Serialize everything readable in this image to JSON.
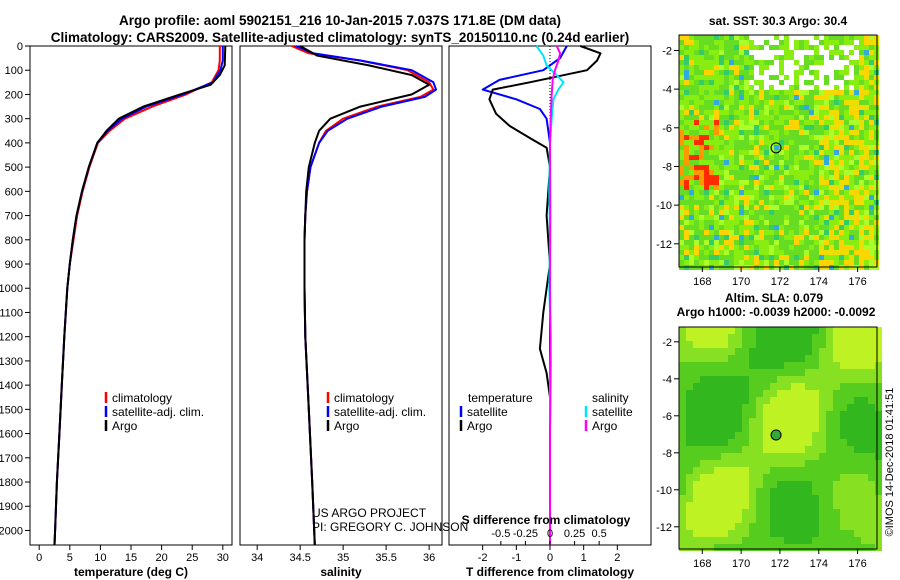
{
  "header": {
    "line1": "Argo profile: aoml 5902151_216 10-Jan-2015 7.037S 171.8E (DM data)",
    "line2": "Climatology: CARS2009. Satellite-adjusted climatology: synTS_20150110.nc (0.24d earlier)"
  },
  "colors": {
    "climatology": "#ff0000",
    "satellite": "#0000ff",
    "argo": "#000000",
    "satellite_salinity": "#00e5ff",
    "argo_salinity": "#ff00ff"
  },
  "credit": {
    "line1": "US ARGO PROJECT",
    "line2": "PI: GREGORY C. JOHNSON"
  },
  "stamp": "©IMOS 14-Dec-2018 01:41:51",
  "chart_data": [
    {
      "id": "temperature",
      "type": "line",
      "xlabel": "temperature (deg C)",
      "xlim": [
        -1.5,
        31.5
      ],
      "xticks": [
        0,
        5,
        10,
        15,
        20,
        25,
        30
      ],
      "ylim": [
        2060,
        0
      ],
      "yticks": [
        0,
        100,
        200,
        300,
        400,
        500,
        600,
        700,
        800,
        900,
        1000,
        1100,
        1200,
        1300,
        1400,
        1500,
        1600,
        1700,
        1800,
        1900,
        2000
      ],
      "legend": [
        {
          "label": "climatology",
          "color": "#ff0000"
        },
        {
          "label": "satellite-adj. clim.",
          "color": "#0000ff"
        },
        {
          "label": "Argo",
          "color": "#000000"
        }
      ],
      "series": [
        {
          "name": "climatology",
          "color": "#ff0000",
          "points": [
            [
              0,
              29.5
            ],
            [
              60,
              29.5
            ],
            [
              100,
              29.3
            ],
            [
              150,
              28.2
            ],
            [
              200,
              24
            ],
            [
              250,
              18.5
            ],
            [
              300,
              14
            ],
            [
              350,
              11.5
            ],
            [
              400,
              9.6
            ],
            [
              500,
              8.2
            ],
            [
              600,
              7.1
            ],
            [
              700,
              6.2
            ],
            [
              800,
              5.6
            ],
            [
              900,
              5
            ],
            [
              1000,
              4.6
            ],
            [
              1200,
              4.1
            ],
            [
              1400,
              3.7
            ],
            [
              1600,
              3.3
            ],
            [
              1800,
              2.9
            ],
            [
              2000,
              2.6
            ],
            [
              2060,
              2.5
            ]
          ]
        },
        {
          "name": "satellite-adj. clim.",
          "color": "#0000ff",
          "points": [
            [
              0,
              30
            ],
            [
              60,
              30
            ],
            [
              100,
              29.6
            ],
            [
              150,
              28.4
            ],
            [
              200,
              23.5
            ],
            [
              250,
              17.5
            ],
            [
              300,
              13.5
            ],
            [
              350,
              11.2
            ],
            [
              400,
              9.5
            ],
            [
              500,
              8.1
            ],
            [
              600,
              7
            ],
            [
              700,
              6.1
            ],
            [
              800,
              5.5
            ],
            [
              900,
              5
            ],
            [
              1000,
              4.6
            ],
            [
              1200,
              4.1
            ],
            [
              1400,
              3.7
            ],
            [
              1600,
              3.3
            ],
            [
              1800,
              2.9
            ],
            [
              2000,
              2.6
            ],
            [
              2060,
              2.5
            ]
          ]
        },
        {
          "name": "Argo",
          "color": "#000000",
          "points": [
            [
              0,
              30.4
            ],
            [
              80,
              30.3
            ],
            [
              120,
              29.5
            ],
            [
              160,
              28
            ],
            [
              200,
              23
            ],
            [
              250,
              17
            ],
            [
              300,
              13
            ],
            [
              350,
              11
            ],
            [
              400,
              9.5
            ],
            [
              500,
              8.1
            ],
            [
              600,
              7
            ],
            [
              700,
              6.1
            ],
            [
              800,
              5.5
            ],
            [
              900,
              5
            ],
            [
              1000,
              4.6
            ],
            [
              1200,
              4.1
            ],
            [
              1400,
              3.7
            ],
            [
              1600,
              3.3
            ],
            [
              1800,
              2.9
            ],
            [
              2000,
              2.6
            ],
            [
              2060,
              2.5
            ]
          ]
        }
      ]
    },
    {
      "id": "salinity",
      "type": "line",
      "xlabel": "salinity",
      "xlim": [
        33.8,
        36.15
      ],
      "xticks": [
        34,
        34.5,
        35,
        35.5,
        36
      ],
      "xticklabels": [
        "34",
        "34.5",
        "35",
        "35.5",
        "36"
      ],
      "ylim": [
        2060,
        0
      ],
      "legend": [
        {
          "label": "climatology",
          "color": "#ff0000"
        },
        {
          "label": "satellite-adj. clim.",
          "color": "#0000ff"
        },
        {
          "label": "Argo",
          "color": "#000000"
        }
      ],
      "series": [
        {
          "name": "climatology",
          "color": "#ff0000",
          "points": [
            [
              0,
              34.4
            ],
            [
              30,
              34.6
            ],
            [
              60,
              35.2
            ],
            [
              100,
              35.75
            ],
            [
              150,
              36
            ],
            [
              180,
              36.05
            ],
            [
              210,
              35.9
            ],
            [
              250,
              35.4
            ],
            [
              300,
              35
            ],
            [
              350,
              34.8
            ],
            [
              400,
              34.72
            ],
            [
              500,
              34.62
            ],
            [
              600,
              34.58
            ],
            [
              700,
              34.56
            ],
            [
              800,
              34.55
            ],
            [
              1000,
              34.55
            ],
            [
              1200,
              34.56
            ],
            [
              1500,
              34.6
            ],
            [
              1800,
              34.64
            ],
            [
              2060,
              34.67
            ]
          ]
        },
        {
          "name": "satellite-adj. clim.",
          "color": "#0000ff",
          "points": [
            [
              0,
              34.45
            ],
            [
              30,
              34.65
            ],
            [
              60,
              35.2
            ],
            [
              100,
              35.8
            ],
            [
              150,
              36.05
            ],
            [
              180,
              36.08
            ],
            [
              210,
              35.95
            ],
            [
              250,
              35.45
            ],
            [
              300,
              35.05
            ],
            [
              350,
              34.82
            ],
            [
              400,
              34.72
            ],
            [
              500,
              34.62
            ],
            [
              600,
              34.58
            ],
            [
              700,
              34.56
            ],
            [
              800,
              34.55
            ],
            [
              1000,
              34.55
            ],
            [
              1200,
              34.56
            ],
            [
              1500,
              34.6
            ],
            [
              1800,
              34.64
            ],
            [
              2060,
              34.67
            ]
          ]
        },
        {
          "name": "Argo",
          "color": "#000000",
          "points": [
            [
              0,
              34.5
            ],
            [
              40,
              34.7
            ],
            [
              80,
              35.3
            ],
            [
              120,
              35.8
            ],
            [
              160,
              36
            ],
            [
              200,
              35.8
            ],
            [
              250,
              35.2
            ],
            [
              300,
              34.85
            ],
            [
              350,
              34.72
            ],
            [
              400,
              34.67
            ],
            [
              500,
              34.6
            ],
            [
              600,
              34.57
            ],
            [
              700,
              34.56
            ],
            [
              800,
              34.55
            ],
            [
              1000,
              34.55
            ],
            [
              1200,
              34.56
            ],
            [
              1500,
              34.6
            ],
            [
              1800,
              34.64
            ],
            [
              2060,
              34.67
            ]
          ]
        }
      ]
    },
    {
      "id": "differences",
      "type": "line",
      "xlabel": "T difference from climatology",
      "x2label": "S difference from climatology",
      "xlim": [
        -3,
        3
      ],
      "xticks": [
        -2,
        -1,
        0,
        1,
        2
      ],
      "x2ticks": [
        -0.5,
        -0.25,
        0,
        0.25,
        0.5
      ],
      "x2ticklabels": [
        "-0.5",
        "-0.25",
        "0",
        "0.25",
        "0.5"
      ],
      "ylim": [
        2060,
        0
      ],
      "legend_left_title": "temperature",
      "legend_right_title": "salinity",
      "legend_left": [
        {
          "label": "satellite",
          "color": "#0000ff"
        },
        {
          "label": "Argo",
          "color": "#000000"
        }
      ],
      "legend_right": [
        {
          "label": "satellite",
          "color": "#00e5ff"
        },
        {
          "label": "Argo",
          "color": "#ff00ff"
        }
      ],
      "series": [
        {
          "name": "temperature satellite",
          "color": "#0000ff",
          "points": [
            [
              0,
              0.5
            ],
            [
              50,
              0.3
            ],
            [
              100,
              -0.2
            ],
            [
              140,
              -1.5
            ],
            [
              180,
              -2
            ],
            [
              220,
              -1
            ],
            [
              260,
              -0.3
            ],
            [
              300,
              -0.1
            ],
            [
              400,
              0
            ],
            [
              600,
              0
            ],
            [
              2060,
              0
            ]
          ]
        },
        {
          "name": "temperature Argo",
          "color": "#000000",
          "points": [
            [
              0,
              0.9
            ],
            [
              30,
              1.5
            ],
            [
              60,
              1.4
            ],
            [
              100,
              1.1
            ],
            [
              150,
              -0.6
            ],
            [
              180,
              -1.7
            ],
            [
              220,
              -1.8
            ],
            [
              280,
              -1.6
            ],
            [
              330,
              -1.2
            ],
            [
              380,
              -0.6
            ],
            [
              420,
              -0.1
            ],
            [
              500,
              0
            ],
            [
              700,
              -0.1
            ],
            [
              900,
              0
            ],
            [
              1100,
              -0.2
            ],
            [
              1250,
              -0.3
            ],
            [
              1350,
              -0.1
            ],
            [
              1450,
              0
            ],
            [
              2060,
              0
            ]
          ]
        },
        {
          "name": "salinity satellite",
          "color": "#00e5ff",
          "points": [
            [
              0,
              -0.4
            ],
            [
              40,
              -0.2
            ],
            [
              80,
              -0.1
            ],
            [
              120,
              0.2
            ],
            [
              150,
              0.4
            ],
            [
              180,
              0.25
            ],
            [
              220,
              0.1
            ],
            [
              300,
              0.05
            ],
            [
              400,
              0
            ],
            [
              600,
              -0.02
            ],
            [
              800,
              0
            ],
            [
              1000,
              -0.02
            ],
            [
              1200,
              0.02
            ],
            [
              1400,
              0
            ],
            [
              2060,
              0
            ]
          ]
        },
        {
          "name": "salinity Argo",
          "color": "#ff00ff",
          "points": [
            [
              0,
              0.2
            ],
            [
              30,
              0.3
            ],
            [
              60,
              0.25
            ],
            [
              100,
              0.15
            ],
            [
              140,
              0.08
            ],
            [
              200,
              0.05
            ],
            [
              300,
              0.02
            ],
            [
              400,
              0
            ],
            [
              700,
              0.01
            ],
            [
              1000,
              0
            ],
            [
              1300,
              0.02
            ],
            [
              1500,
              0.01
            ],
            [
              1600,
              0
            ],
            [
              2060,
              0
            ]
          ]
        }
      ]
    },
    {
      "id": "sst-map",
      "type": "heatmap",
      "title": "sat. SST: 30.3 Argo: 30.4",
      "xlim": [
        166.8,
        177
      ],
      "ylim": [
        -13.2,
        -1.2
      ],
      "xticks": [
        168,
        170,
        172,
        174,
        176
      ],
      "yticks": [
        -2,
        -4,
        -6,
        -8,
        -10,
        -12
      ],
      "marker": [
        171.8,
        -7.037
      ]
    },
    {
      "id": "sla-map",
      "type": "heatmap",
      "title": "Altim. SLA: 0.079",
      "subtitle": "Argo h1000: -0.0039 h2000: -0.0092",
      "xlim": [
        166.8,
        177
      ],
      "ylim": [
        -13.2,
        -1.2
      ],
      "xticks": [
        168,
        170,
        172,
        174,
        176
      ],
      "yticks": [
        -2,
        -4,
        -6,
        -8,
        -10,
        -12
      ],
      "marker": [
        171.8,
        -7.037
      ]
    }
  ]
}
